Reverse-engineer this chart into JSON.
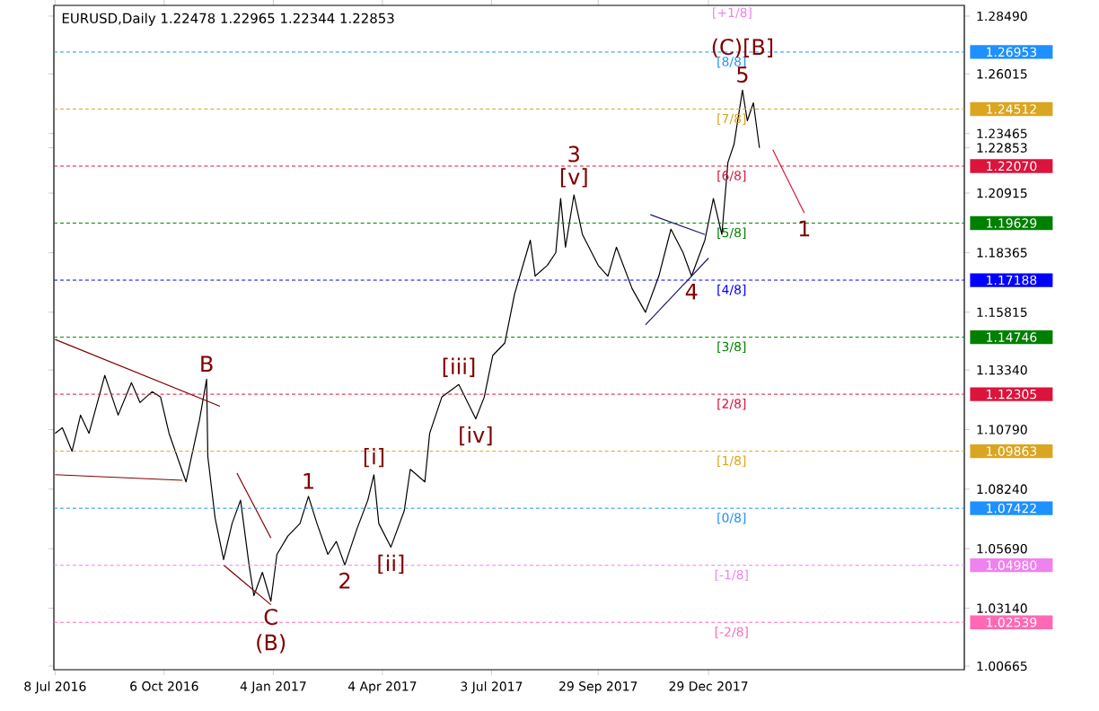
{
  "chart_data": {
    "type": "line",
    "title": "EURUSD,Daily  1.22478 1.22965 1.22344 1.22853",
    "xlim": [
      "2016-07-07",
      "2018-07-28"
    ],
    "ylim": [
      1.0051,
      1.2895
    ],
    "xticks": [
      {
        "value": "2016-07-08",
        "label": "8 Jul 2016"
      },
      {
        "value": "2016-10-06",
        "label": "6 Oct 2016"
      },
      {
        "value": "2017-01-04",
        "label": "4 Jan 2017"
      },
      {
        "value": "2017-04-04",
        "label": "4 Apr 2017"
      },
      {
        "value": "2017-07-03",
        "label": "3 Jul 2017"
      },
      {
        "value": "2017-09-29",
        "label": "29 Sep 2017"
      },
      {
        "value": "2017-12-29",
        "label": "29 Dec 2017"
      }
    ],
    "yticks": [
      {
        "value": 1.00665,
        "label": "1.00665"
      },
      {
        "value": 1.0314,
        "label": "1.03140"
      },
      {
        "value": 1.0569,
        "label": "1.05690"
      },
      {
        "value": 1.0824,
        "label": "1.08240"
      },
      {
        "value": 1.1079,
        "label": "1.10790"
      },
      {
        "value": 1.1334,
        "label": "1.13340"
      },
      {
        "value": 1.15815,
        "label": "1.15815"
      },
      {
        "value": 1.18365,
        "label": "1.18365"
      },
      {
        "value": 1.20915,
        "label": "1.20915"
      },
      {
        "value": 1.22853,
        "label": "1.22853"
      },
      {
        "value": 1.23465,
        "label": "1.23465"
      },
      {
        "value": 1.26015,
        "label": "1.26015"
      },
      {
        "value": 1.2849,
        "label": "1.28490"
      }
    ],
    "series": [
      {
        "color": "#000000",
        "x": [
          "2016-07-08",
          "2016-07-14",
          "2016-07-22",
          "2016-07-29",
          "2016-08-05",
          "2016-08-18",
          "2016-08-29",
          "2016-09-09",
          "2016-09-16",
          "2016-09-26",
          "2016-10-03",
          "2016-10-10",
          "2016-10-24",
          "2016-11-04",
          "2016-11-10",
          "2016-11-11",
          "2016-11-17",
          "2016-11-24",
          "2016-12-01",
          "2016-12-08",
          "2016-12-15",
          "2016-12-19",
          "2016-12-26",
          "2017-01-02",
          "2017-01-07",
          "2017-01-16",
          "2017-01-26",
          "2017-02-02",
          "2017-02-09",
          "2017-02-18",
          "2017-02-25",
          "2017-03-04",
          "2017-03-14",
          "2017-03-23",
          "2017-03-28",
          "2017-04-01",
          "2017-04-11",
          "2017-04-22",
          "2017-04-27",
          "2017-05-09",
          "2017-05-13",
          "2017-05-23",
          "2017-06-06",
          "2017-06-20",
          "2017-06-27",
          "2017-07-04",
          "2017-07-14",
          "2017-07-22",
          "2017-08-04",
          "2017-08-08",
          "2017-08-18",
          "2017-08-25",
          "2017-08-29",
          "2017-09-02",
          "2017-09-09",
          "2017-09-16",
          "2017-09-29",
          "2017-10-07",
          "2017-10-14",
          "2017-10-27",
          "2017-11-07",
          "2017-11-18",
          "2017-11-28",
          "2017-12-08",
          "2017-12-15",
          "2017-12-26",
          "2018-01-02",
          "2018-01-09",
          "2018-01-14",
          "2018-01-19",
          "2018-01-26",
          "2018-01-30",
          "2018-02-04",
          "2018-02-09"
        ],
        "values": [
          1.1063,
          1.1087,
          1.0986,
          1.1141,
          1.1063,
          1.1311,
          1.1141,
          1.128,
          1.1195,
          1.1241,
          1.1218,
          1.1063,
          1.0855,
          1.1117,
          1.1295,
          1.0963,
          1.07,
          1.0522,
          1.0677,
          1.0777,
          1.0499,
          1.0368,
          1.0468,
          1.0344,
          1.0545,
          1.0623,
          1.0677,
          1.0793,
          1.0677,
          1.0545,
          1.06,
          1.0499,
          1.0654,
          1.0777,
          1.0886,
          1.0677,
          1.0576,
          1.0731,
          1.0909,
          1.0855,
          1.1063,
          1.1218,
          1.1272,
          1.1125,
          1.1218,
          1.1396,
          1.145,
          1.1659,
          1.189,
          1.1736,
          1.1782,
          1.1836,
          1.2068,
          1.186,
          1.2084,
          1.1914,
          1.1782,
          1.1736,
          1.186,
          1.1682,
          1.1581,
          1.1736,
          1.1937,
          1.1836,
          1.1736,
          1.189,
          1.2068,
          1.1914,
          1.2223,
          1.23,
          1.2532,
          1.2401,
          1.2478,
          1.2285
        ]
      },
      {
        "color": "#800000",
        "x": [
          "2016-07-08",
          "2016-11-21"
        ],
        "values": [
          1.1465,
          1.1179
        ]
      },
      {
        "color": "#800000",
        "x": [
          "2016-07-08",
          "2016-10-21"
        ],
        "values": [
          1.0886,
          1.0862
        ]
      },
      {
        "color": "#800000",
        "x": [
          "2016-12-05",
          "2017-01-02"
        ],
        "values": [
          1.0893,
          1.0615
        ]
      },
      {
        "color": "#800000",
        "x": [
          "2016-11-24",
          "2017-01-02"
        ],
        "values": [
          1.0499,
          1.0329
        ]
      },
      {
        "color": "#191970",
        "x": [
          "2017-11-11",
          "2017-12-26"
        ],
        "values": [
          1.1999,
          1.1914
        ]
      },
      {
        "color": "#191970",
        "x": [
          "2017-11-07",
          "2017-12-29"
        ],
        "values": [
          1.1527,
          1.1813
        ]
      },
      {
        "color": "#dc143c",
        "x": [
          "2018-02-20",
          "2018-03-18"
        ],
        "values": [
          1.2277,
          1.2006
        ]
      }
    ],
    "ref_lines": [
      {
        "axis": "y",
        "value": 1.26953,
        "label": "1.26953",
        "color": "#1e90ff",
        "line_style": "dashed"
      },
      {
        "axis": "y",
        "value": 1.24512,
        "label": "1.24512",
        "color": "#daa520",
        "line_style": "dashed"
      },
      {
        "axis": "y",
        "value": 1.2207,
        "label": "1.22070",
        "color": "#dc143c",
        "line_style": "dashed"
      },
      {
        "axis": "y",
        "value": 1.19629,
        "label": "1.19629",
        "color": "#008000",
        "line_style": "dashed"
      },
      {
        "axis": "y",
        "value": 1.17188,
        "label": "1.17188",
        "color": "#0000ff",
        "line_style": "dashed"
      },
      {
        "axis": "y",
        "value": 1.14746,
        "label": "1.14746",
        "color": "#008000",
        "line_style": "dashed"
      },
      {
        "axis": "y",
        "value": 1.12305,
        "label": "1.12305",
        "color": "#dc143c",
        "line_style": "dashed"
      },
      {
        "axis": "y",
        "value": 1.09863,
        "label": "1.09863",
        "color": "#daa520",
        "line_style": "dashed"
      },
      {
        "axis": "y",
        "value": 1.07422,
        "label": "1.07422",
        "color": "#1e90ff",
        "line_style": "dashed"
      },
      {
        "axis": "y",
        "value": 1.0498,
        "label": "1.04980",
        "color": "#ee82ee",
        "line_style": "dashed"
      },
      {
        "axis": "y",
        "value": 1.02539,
        "label": "1.02539",
        "color": "#ff69b4",
        "line_style": "dashed"
      }
    ],
    "annotations": [
      "[+1/8]",
      {
        "text": "[8/8]",
        "x": "2018-01-17",
        "y": 1.26953
      },
      {
        "text": "[7/8]",
        "x": "2018-01-17",
        "y": 1.24512
      },
      {
        "text": "[6/8]",
        "x": "2018-01-17",
        "y": 1.2207
      },
      {
        "text": "[5/8]",
        "x": "2018-01-17",
        "y": 1.19629
      },
      {
        "text": "[4/8]",
        "x": "2018-01-17",
        "y": 1.17188
      },
      {
        "text": "[3/8]",
        "x": "2018-01-17",
        "y": 1.14746
      },
      {
        "text": "[2/8]",
        "x": "2018-01-17",
        "y": 1.12305
      },
      {
        "text": "[1/8]",
        "x": "2018-01-17",
        "y": 1.09863
      },
      {
        "text": "[0/8]",
        "x": "2018-01-17",
        "y": 1.07422
      },
      {
        "text": "[-1/8]",
        "x": "2018-01-17",
        "y": 1.0498
      },
      {
        "text": "[-2/8]",
        "x": "2018-01-17",
        "y": 1.02539
      },
      {
        "text": "B",
        "x": "2016-11-10",
        "y": 1.1295
      },
      {
        "text": "C",
        "x": "2017-01-02",
        "y": 1.0344
      },
      {
        "text": "(B)",
        "x": "2017-01-02",
        "y": 1.0344
      },
      {
        "text": "1",
        "x": "2017-02-02",
        "y": 1.0793
      },
      {
        "text": "2",
        "x": "2017-03-04",
        "y": 1.0499
      },
      {
        "text": "[i]",
        "x": "2017-03-28",
        "y": 1.0886
      },
      {
        "text": "[ii]",
        "x": "2017-04-11",
        "y": 1.0576
      },
      {
        "text": "[iii]",
        "x": "2017-06-06",
        "y": 1.1272
      },
      {
        "text": "[iv]",
        "x": "2017-06-20",
        "y": 1.1125
      },
      {
        "text": "[v]",
        "x": "2017-09-09",
        "y": 1.2084
      },
      {
        "text": "3",
        "x": "2017-09-09",
        "y": 1.2084
      },
      {
        "text": "4",
        "x": "2017-12-15",
        "y": 1.1736
      },
      {
        "text": "5",
        "x": "2018-01-26",
        "y": 1.2532
      },
      {
        "text": "(C)[B]",
        "x": "2018-01-26",
        "y": 1.2532
      },
      {
        "text": "1",
        "x": "2018-03-18",
        "y": 1.2006
      }
    ]
  }
}
